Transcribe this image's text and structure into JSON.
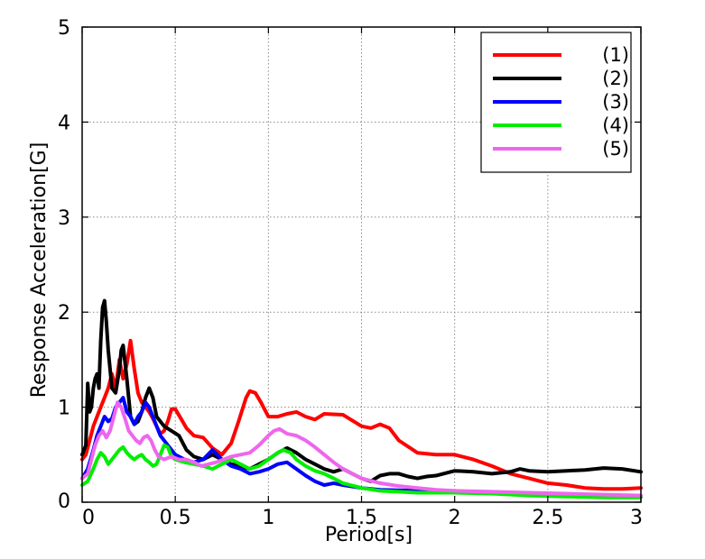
{
  "chart_data": {
    "type": "line",
    "xlabel": "Period[s]",
    "ylabel": "Response Acceleration[G]",
    "xlim": [
      0,
      3
    ],
    "ylim": [
      0,
      5
    ],
    "x_ticks": [
      {
        "value": 0,
        "label": "0"
      },
      {
        "value": 0.5,
        "label": "0.5"
      },
      {
        "value": 1,
        "label": "1"
      },
      {
        "value": 1.5,
        "label": "1.5"
      },
      {
        "value": 2,
        "label": "2"
      },
      {
        "value": 2.5,
        "label": "2.5"
      },
      {
        "value": 3,
        "label": "3"
      }
    ],
    "y_ticks": [
      {
        "value": 0,
        "label": "0"
      },
      {
        "value": 1,
        "label": "1"
      },
      {
        "value": 2,
        "label": "2"
      },
      {
        "value": 3,
        "label": "3"
      },
      {
        "value": 4,
        "label": "4"
      },
      {
        "value": 5,
        "label": "5"
      }
    ],
    "grid": true,
    "legend_position": "top-right",
    "series": [
      {
        "name": "(1)",
        "color": "#ff0000",
        "points": [
          [
            0,
            0.45
          ],
          [
            0.02,
            0.5
          ],
          [
            0.04,
            0.65
          ],
          [
            0.06,
            0.8
          ],
          [
            0.08,
            0.9
          ],
          [
            0.1,
            1.0
          ],
          [
            0.12,
            1.1
          ],
          [
            0.14,
            1.2
          ],
          [
            0.16,
            1.35
          ],
          [
            0.18,
            1.2
          ],
          [
            0.2,
            1.5
          ],
          [
            0.22,
            1.3
          ],
          [
            0.24,
            1.45
          ],
          [
            0.26,
            1.7
          ],
          [
            0.28,
            1.4
          ],
          [
            0.3,
            1.15
          ],
          [
            0.32,
            1.05
          ],
          [
            0.34,
            1.0
          ],
          [
            0.36,
            0.95
          ],
          [
            0.38,
            0.88
          ],
          [
            0.4,
            0.8
          ],
          [
            0.42,
            0.72
          ],
          [
            0.44,
            0.75
          ],
          [
            0.46,
            0.85
          ],
          [
            0.48,
            0.98
          ],
          [
            0.5,
            0.98
          ],
          [
            0.53,
            0.88
          ],
          [
            0.56,
            0.78
          ],
          [
            0.6,
            0.7
          ],
          [
            0.65,
            0.68
          ],
          [
            0.7,
            0.57
          ],
          [
            0.75,
            0.5
          ],
          [
            0.8,
            0.62
          ],
          [
            0.84,
            0.85
          ],
          [
            0.88,
            1.1
          ],
          [
            0.9,
            1.17
          ],
          [
            0.93,
            1.15
          ],
          [
            0.96,
            1.05
          ],
          [
            1.0,
            0.9
          ],
          [
            1.05,
            0.9
          ],
          [
            1.1,
            0.93
          ],
          [
            1.15,
            0.95
          ],
          [
            1.2,
            0.9
          ],
          [
            1.25,
            0.87
          ],
          [
            1.3,
            0.93
          ],
          [
            1.4,
            0.92
          ],
          [
            1.5,
            0.8
          ],
          [
            1.55,
            0.78
          ],
          [
            1.6,
            0.82
          ],
          [
            1.65,
            0.78
          ],
          [
            1.7,
            0.65
          ],
          [
            1.8,
            0.52
          ],
          [
            1.9,
            0.5
          ],
          [
            2.0,
            0.5
          ],
          [
            2.1,
            0.45
          ],
          [
            2.2,
            0.38
          ],
          [
            2.3,
            0.3
          ],
          [
            2.4,
            0.25
          ],
          [
            2.5,
            0.2
          ],
          [
            2.6,
            0.18
          ],
          [
            2.7,
            0.15
          ],
          [
            2.8,
            0.14
          ],
          [
            2.9,
            0.14
          ],
          [
            3.0,
            0.15
          ]
        ]
      },
      {
        "name": "(2)",
        "color": "#000000",
        "points": [
          [
            0,
            0.5
          ],
          [
            0.02,
            0.6
          ],
          [
            0.03,
            1.25
          ],
          [
            0.04,
            0.95
          ],
          [
            0.05,
            1.0
          ],
          [
            0.06,
            1.2
          ],
          [
            0.07,
            1.3
          ],
          [
            0.08,
            1.35
          ],
          [
            0.09,
            1.2
          ],
          [
            0.1,
            1.7
          ],
          [
            0.11,
            2.05
          ],
          [
            0.12,
            2.12
          ],
          [
            0.13,
            1.9
          ],
          [
            0.14,
            1.6
          ],
          [
            0.16,
            1.2
          ],
          [
            0.18,
            1.15
          ],
          [
            0.2,
            1.4
          ],
          [
            0.21,
            1.6
          ],
          [
            0.22,
            1.65
          ],
          [
            0.24,
            1.3
          ],
          [
            0.26,
            0.9
          ],
          [
            0.28,
            0.82
          ],
          [
            0.3,
            0.85
          ],
          [
            0.32,
            0.95
          ],
          [
            0.34,
            1.1
          ],
          [
            0.36,
            1.2
          ],
          [
            0.38,
            1.1
          ],
          [
            0.4,
            0.9
          ],
          [
            0.44,
            0.8
          ],
          [
            0.48,
            0.75
          ],
          [
            0.52,
            0.7
          ],
          [
            0.56,
            0.55
          ],
          [
            0.6,
            0.48
          ],
          [
            0.65,
            0.45
          ],
          [
            0.7,
            0.5
          ],
          [
            0.75,
            0.45
          ],
          [
            0.8,
            0.4
          ],
          [
            0.85,
            0.38
          ],
          [
            0.9,
            0.35
          ],
          [
            0.95,
            0.4
          ],
          [
            1.0,
            0.45
          ],
          [
            1.05,
            0.52
          ],
          [
            1.1,
            0.57
          ],
          [
            1.15,
            0.52
          ],
          [
            1.2,
            0.45
          ],
          [
            1.25,
            0.4
          ],
          [
            1.3,
            0.35
          ],
          [
            1.35,
            0.32
          ],
          [
            1.4,
            0.35
          ],
          [
            1.45,
            0.3
          ],
          [
            1.5,
            0.25
          ],
          [
            1.55,
            0.22
          ],
          [
            1.6,
            0.28
          ],
          [
            1.65,
            0.3
          ],
          [
            1.7,
            0.3
          ],
          [
            1.75,
            0.27
          ],
          [
            1.8,
            0.25
          ],
          [
            1.85,
            0.27
          ],
          [
            1.9,
            0.28
          ],
          [
            2.0,
            0.33
          ],
          [
            2.1,
            0.32
          ],
          [
            2.2,
            0.3
          ],
          [
            2.3,
            0.32
          ],
          [
            2.35,
            0.35
          ],
          [
            2.4,
            0.33
          ],
          [
            2.5,
            0.32
          ],
          [
            2.6,
            0.33
          ],
          [
            2.7,
            0.34
          ],
          [
            2.8,
            0.36
          ],
          [
            2.9,
            0.35
          ],
          [
            3.0,
            0.32
          ]
        ]
      },
      {
        "name": "(3)",
        "color": "#0000ff",
        "points": [
          [
            0,
            0.25
          ],
          [
            0.03,
            0.35
          ],
          [
            0.06,
            0.55
          ],
          [
            0.08,
            0.7
          ],
          [
            0.1,
            0.8
          ],
          [
            0.12,
            0.9
          ],
          [
            0.14,
            0.85
          ],
          [
            0.16,
            0.88
          ],
          [
            0.18,
            1.0
          ],
          [
            0.2,
            1.05
          ],
          [
            0.22,
            1.1
          ],
          [
            0.24,
            0.95
          ],
          [
            0.26,
            0.9
          ],
          [
            0.28,
            0.82
          ],
          [
            0.3,
            0.9
          ],
          [
            0.32,
            0.95
          ],
          [
            0.34,
            1.05
          ],
          [
            0.36,
            1.0
          ],
          [
            0.38,
            0.9
          ],
          [
            0.4,
            0.8
          ],
          [
            0.42,
            0.7
          ],
          [
            0.44,
            0.65
          ],
          [
            0.46,
            0.6
          ],
          [
            0.5,
            0.5
          ],
          [
            0.55,
            0.45
          ],
          [
            0.6,
            0.42
          ],
          [
            0.65,
            0.45
          ],
          [
            0.7,
            0.55
          ],
          [
            0.75,
            0.45
          ],
          [
            0.8,
            0.38
          ],
          [
            0.85,
            0.35
          ],
          [
            0.9,
            0.3
          ],
          [
            0.95,
            0.32
          ],
          [
            1.0,
            0.35
          ],
          [
            1.05,
            0.4
          ],
          [
            1.1,
            0.42
          ],
          [
            1.15,
            0.35
          ],
          [
            1.2,
            0.28
          ],
          [
            1.25,
            0.22
          ],
          [
            1.3,
            0.18
          ],
          [
            1.35,
            0.2
          ],
          [
            1.4,
            0.18
          ],
          [
            1.5,
            0.15
          ],
          [
            1.6,
            0.13
          ],
          [
            1.8,
            0.12
          ],
          [
            2.0,
            0.11
          ],
          [
            2.2,
            0.1
          ],
          [
            2.4,
            0.09
          ],
          [
            2.6,
            0.08
          ],
          [
            2.8,
            0.07
          ],
          [
            3.0,
            0.06
          ]
        ]
      },
      {
        "name": "(4)",
        "color": "#00ee00",
        "points": [
          [
            0,
            0.18
          ],
          [
            0.03,
            0.22
          ],
          [
            0.06,
            0.35
          ],
          [
            0.08,
            0.45
          ],
          [
            0.1,
            0.52
          ],
          [
            0.12,
            0.48
          ],
          [
            0.14,
            0.4
          ],
          [
            0.16,
            0.45
          ],
          [
            0.18,
            0.5
          ],
          [
            0.2,
            0.55
          ],
          [
            0.22,
            0.58
          ],
          [
            0.24,
            0.52
          ],
          [
            0.26,
            0.48
          ],
          [
            0.28,
            0.45
          ],
          [
            0.3,
            0.48
          ],
          [
            0.32,
            0.5
          ],
          [
            0.34,
            0.45
          ],
          [
            0.36,
            0.42
          ],
          [
            0.38,
            0.38
          ],
          [
            0.4,
            0.4
          ],
          [
            0.42,
            0.5
          ],
          [
            0.44,
            0.6
          ],
          [
            0.46,
            0.58
          ],
          [
            0.48,
            0.48
          ],
          [
            0.5,
            0.45
          ],
          [
            0.55,
            0.42
          ],
          [
            0.6,
            0.4
          ],
          [
            0.65,
            0.38
          ],
          [
            0.7,
            0.35
          ],
          [
            0.75,
            0.4
          ],
          [
            0.8,
            0.45
          ],
          [
            0.85,
            0.4
          ],
          [
            0.9,
            0.35
          ],
          [
            0.95,
            0.38
          ],
          [
            1.0,
            0.45
          ],
          [
            1.05,
            0.52
          ],
          [
            1.08,
            0.55
          ],
          [
            1.12,
            0.52
          ],
          [
            1.15,
            0.45
          ],
          [
            1.2,
            0.38
          ],
          [
            1.25,
            0.33
          ],
          [
            1.3,
            0.3
          ],
          [
            1.35,
            0.25
          ],
          [
            1.4,
            0.2
          ],
          [
            1.5,
            0.15
          ],
          [
            1.6,
            0.12
          ],
          [
            1.7,
            0.11
          ],
          [
            1.8,
            0.1
          ],
          [
            2.0,
            0.1
          ],
          [
            2.2,
            0.09
          ],
          [
            2.4,
            0.07
          ],
          [
            2.6,
            0.06
          ],
          [
            2.8,
            0.05
          ],
          [
            3.0,
            0.05
          ]
        ]
      },
      {
        "name": "(5)",
        "color": "#ee66ee",
        "points": [
          [
            0,
            0.25
          ],
          [
            0.03,
            0.3
          ],
          [
            0.05,
            0.45
          ],
          [
            0.07,
            0.6
          ],
          [
            0.09,
            0.7
          ],
          [
            0.11,
            0.75
          ],
          [
            0.13,
            0.68
          ],
          [
            0.15,
            0.75
          ],
          [
            0.17,
            0.9
          ],
          [
            0.19,
            1.05
          ],
          [
            0.21,
            1.0
          ],
          [
            0.23,
            0.88
          ],
          [
            0.25,
            0.75
          ],
          [
            0.27,
            0.7
          ],
          [
            0.29,
            0.65
          ],
          [
            0.31,
            0.62
          ],
          [
            0.33,
            0.68
          ],
          [
            0.35,
            0.7
          ],
          [
            0.37,
            0.65
          ],
          [
            0.39,
            0.55
          ],
          [
            0.41,
            0.48
          ],
          [
            0.44,
            0.45
          ],
          [
            0.48,
            0.48
          ],
          [
            0.52,
            0.45
          ],
          [
            0.56,
            0.45
          ],
          [
            0.6,
            0.42
          ],
          [
            0.64,
            0.38
          ],
          [
            0.68,
            0.4
          ],
          [
            0.72,
            0.42
          ],
          [
            0.76,
            0.45
          ],
          [
            0.8,
            0.48
          ],
          [
            0.85,
            0.5
          ],
          [
            0.9,
            0.52
          ],
          [
            0.95,
            0.6
          ],
          [
            1.0,
            0.7
          ],
          [
            1.03,
            0.75
          ],
          [
            1.06,
            0.77
          ],
          [
            1.1,
            0.72
          ],
          [
            1.15,
            0.7
          ],
          [
            1.2,
            0.65
          ],
          [
            1.25,
            0.58
          ],
          [
            1.3,
            0.5
          ],
          [
            1.35,
            0.42
          ],
          [
            1.4,
            0.35
          ],
          [
            1.5,
            0.25
          ],
          [
            1.6,
            0.2
          ],
          [
            1.7,
            0.17
          ],
          [
            1.8,
            0.15
          ],
          [
            1.9,
            0.13
          ],
          [
            2.0,
            0.12
          ],
          [
            2.2,
            0.11
          ],
          [
            2.4,
            0.1
          ],
          [
            2.6,
            0.09
          ],
          [
            2.8,
            0.08
          ],
          [
            3.0,
            0.07
          ]
        ]
      }
    ]
  }
}
